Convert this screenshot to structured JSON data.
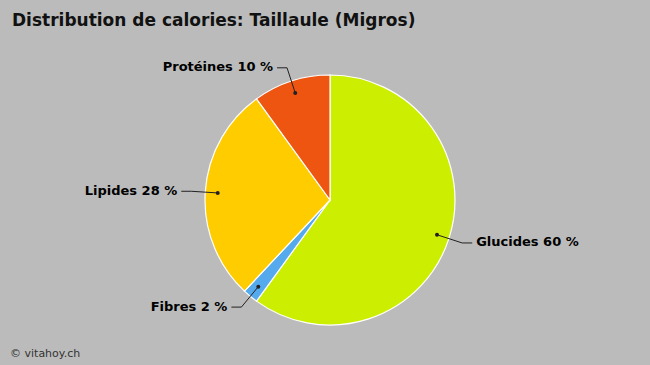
{
  "chart_data": {
    "type": "pie",
    "title": "Distribution de calories: Taillaule (Migros)",
    "categories": [
      "Glucides 60 %",
      "Fibres 2 %",
      "Lipides 28 %",
      "Protéines 10 %"
    ],
    "values": [
      60,
      2,
      28,
      10
    ],
    "colors": [
      "#CCEE00",
      "#55AAEE",
      "#FFCC00",
      "#EE5511"
    ],
    "annotations": [
      "© vitahoy.ch"
    ]
  }
}
